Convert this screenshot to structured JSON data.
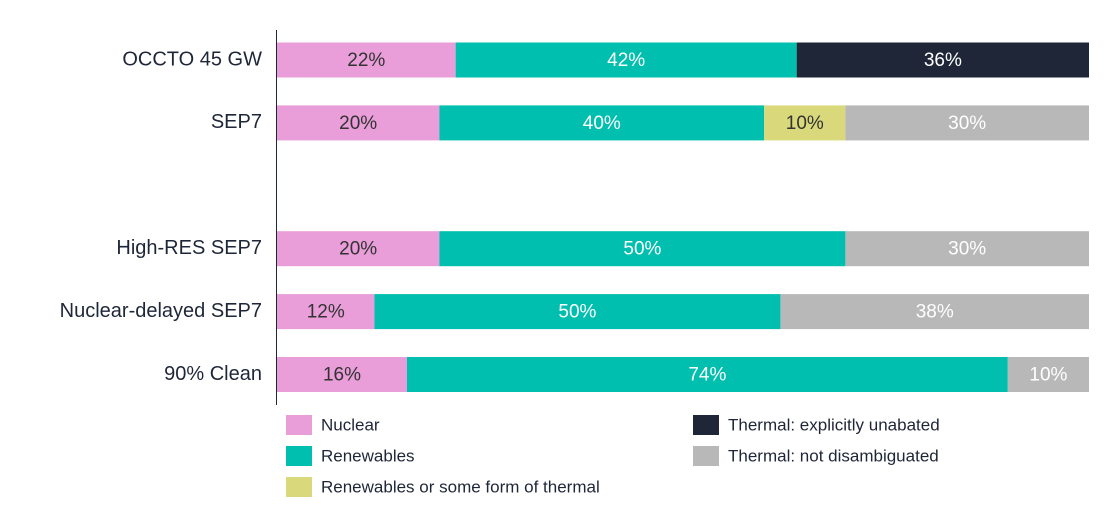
{
  "chart_data": {
    "type": "stacked-bar-horizontal",
    "categories": [
      "OCCTO 45 GW",
      "SEP7",
      null,
      "High-RES SEP7",
      "Nuclear-delayed SEP7",
      "90% Clean"
    ],
    "series": [
      {
        "name": "Nuclear",
        "color": "#e99dd9",
        "values": [
          22,
          20,
          null,
          20,
          12,
          16
        ],
        "value_labels": [
          "22%",
          "20%",
          null,
          "20%",
          "12%",
          "16%"
        ]
      },
      {
        "name": "Renewables",
        "color": "#00bfae",
        "values": [
          42,
          40,
          null,
          50,
          50,
          74
        ],
        "value_labels": [
          "42%",
          "40%",
          null,
          "50%",
          "50%",
          "74%"
        ]
      },
      {
        "name": "Renewables or some form of thermal",
        "color": "#d9d97c",
        "values": [
          null,
          10,
          null,
          null,
          null,
          null
        ],
        "value_labels": [
          null,
          "10%",
          null,
          null,
          null,
          null
        ]
      },
      {
        "name": "Thermal: explicitly unabated",
        "color": "#1e2638",
        "values": [
          36,
          null,
          null,
          null,
          null,
          null
        ],
        "value_labels": [
          "36%",
          null,
          null,
          null,
          null,
          null
        ]
      },
      {
        "name": "Thermal: not disambiguated",
        "color": "#b8b8b8",
        "values": [
          null,
          30,
          null,
          30,
          38,
          10
        ],
        "value_labels": [
          null,
          "30%",
          null,
          "30%",
          "38%",
          "10%"
        ]
      }
    ]
  }
}
